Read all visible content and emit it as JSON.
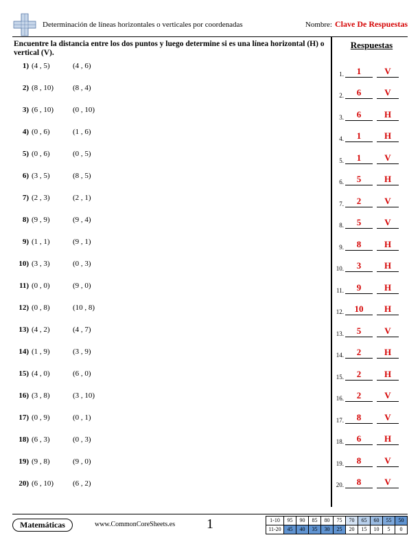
{
  "header": {
    "title": "Determinación de líneas horizontales o verticales por coordenadas",
    "name_label": "Nombre:",
    "answer_key": "Clave De Respuestas"
  },
  "instructions": "Encuentre la distancia entre los dos puntos y luego determine si es una línea horizontal (H) o vertical (V).",
  "answers_header": "Respuestas",
  "questions": [
    {
      "n": "1)",
      "p1": "(4 , 5)",
      "p2": "(4 , 6)"
    },
    {
      "n": "2)",
      "p1": "(8 , 10)",
      "p2": "(8 , 4)"
    },
    {
      "n": "3)",
      "p1": "(6 , 10)",
      "p2": "(0 , 10)"
    },
    {
      "n": "4)",
      "p1": "(0 , 6)",
      "p2": "(1 , 6)"
    },
    {
      "n": "5)",
      "p1": "(0 , 6)",
      "p2": "(0 , 5)"
    },
    {
      "n": "6)",
      "p1": "(3 , 5)",
      "p2": "(8 , 5)"
    },
    {
      "n": "7)",
      "p1": "(2 , 3)",
      "p2": "(2 , 1)"
    },
    {
      "n": "8)",
      "p1": "(9 , 9)",
      "p2": "(9 , 4)"
    },
    {
      "n": "9)",
      "p1": "(1 , 1)",
      "p2": "(9 , 1)"
    },
    {
      "n": "10)",
      "p1": "(3 , 3)",
      "p2": "(0 , 3)"
    },
    {
      "n": "11)",
      "p1": "(0 , 0)",
      "p2": "(9 , 0)"
    },
    {
      "n": "12)",
      "p1": "(0 , 8)",
      "p2": "(10 , 8)"
    },
    {
      "n": "13)",
      "p1": "(4 , 2)",
      "p2": "(4 , 7)"
    },
    {
      "n": "14)",
      "p1": "(1 , 9)",
      "p2": "(3 , 9)"
    },
    {
      "n": "15)",
      "p1": "(4 , 0)",
      "p2": "(6 , 0)"
    },
    {
      "n": "16)",
      "p1": "(3 , 8)",
      "p2": "(3 , 10)"
    },
    {
      "n": "17)",
      "p1": "(0 , 9)",
      "p2": "(0 , 1)"
    },
    {
      "n": "18)",
      "p1": "(6 , 3)",
      "p2": "(0 , 3)"
    },
    {
      "n": "19)",
      "p1": "(9 , 8)",
      "p2": "(9 , 0)"
    },
    {
      "n": "20)",
      "p1": "(6 , 10)",
      "p2": "(6 , 2)"
    }
  ],
  "answers": [
    {
      "n": "1.",
      "d": "1",
      "hv": "V"
    },
    {
      "n": "2.",
      "d": "6",
      "hv": "V"
    },
    {
      "n": "3.",
      "d": "6",
      "hv": "H"
    },
    {
      "n": "4.",
      "d": "1",
      "hv": "H"
    },
    {
      "n": "5.",
      "d": "1",
      "hv": "V"
    },
    {
      "n": "6.",
      "d": "5",
      "hv": "H"
    },
    {
      "n": "7.",
      "d": "2",
      "hv": "V"
    },
    {
      "n": "8.",
      "d": "5",
      "hv": "V"
    },
    {
      "n": "9.",
      "d": "8",
      "hv": "H"
    },
    {
      "n": "10.",
      "d": "3",
      "hv": "H"
    },
    {
      "n": "11.",
      "d": "9",
      "hv": "H"
    },
    {
      "n": "12.",
      "d": "10",
      "hv": "H"
    },
    {
      "n": "13.",
      "d": "5",
      "hv": "V"
    },
    {
      "n": "14.",
      "d": "2",
      "hv": "H"
    },
    {
      "n": "15.",
      "d": "2",
      "hv": "H"
    },
    {
      "n": "16.",
      "d": "2",
      "hv": "V"
    },
    {
      "n": "17.",
      "d": "8",
      "hv": "V"
    },
    {
      "n": "18.",
      "d": "6",
      "hv": "H"
    },
    {
      "n": "19.",
      "d": "8",
      "hv": "V"
    },
    {
      "n": "20.",
      "d": "8",
      "hv": "V"
    }
  ],
  "footer": {
    "subject": "Matemáticas",
    "url": "www.CommonCoreSheets.es",
    "page": "1",
    "score": {
      "row1_label": "1-10",
      "row1": [
        "95",
        "90",
        "85",
        "80",
        "75",
        "70",
        "65",
        "60",
        "55",
        "50"
      ],
      "row2_label": "11-20",
      "row2": [
        "45",
        "40",
        "35",
        "30",
        "25",
        "20",
        "15",
        "10",
        "5",
        "0"
      ],
      "shade1": [
        0,
        0,
        0,
        0,
        0,
        1,
        2,
        3,
        4,
        5
      ],
      "shade2": [
        5,
        5,
        5,
        5,
        5,
        0,
        0,
        0,
        0,
        0
      ]
    }
  },
  "colors": {
    "answer_red": "#d40000",
    "border": "#000000"
  }
}
